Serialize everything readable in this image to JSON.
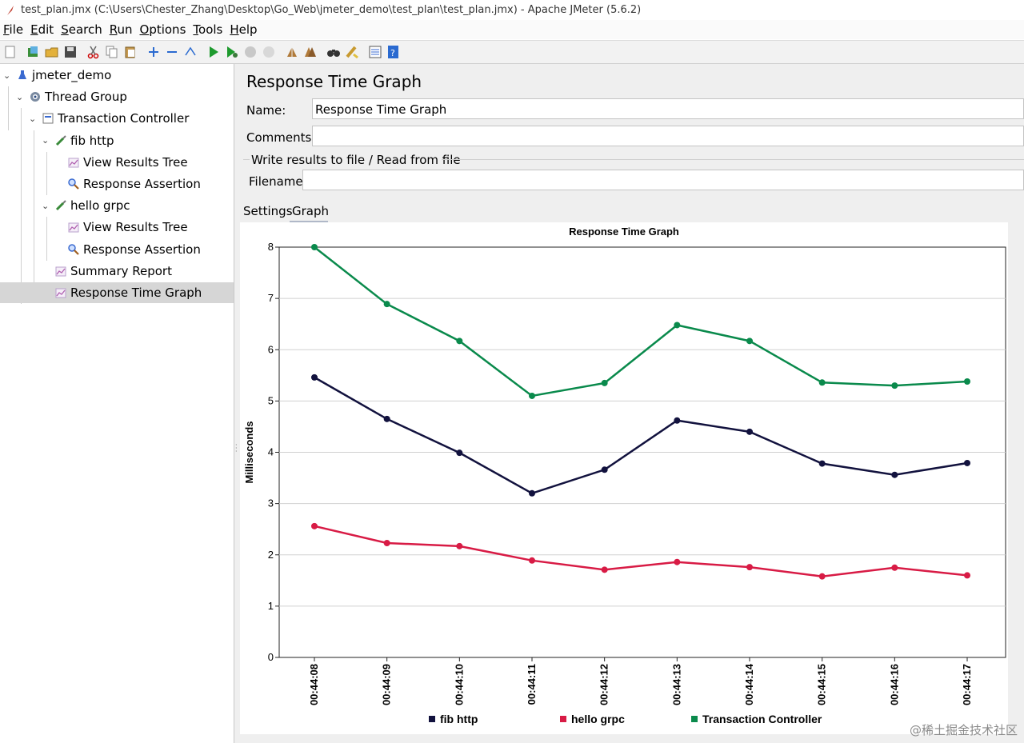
{
  "window": {
    "title": "test_plan.jmx (C:\\Users\\Chester_Zhang\\Desktop\\Go_Web\\jmeter_demo\\test_plan\\test_plan.jmx) - Apache JMeter (5.6.2)"
  },
  "menu": [
    {
      "first": "F",
      "rest": "ile"
    },
    {
      "first": "E",
      "rest": "dit"
    },
    {
      "first": "S",
      "rest": "earch"
    },
    {
      "first": "R",
      "rest": "un"
    },
    {
      "first": "O",
      "rest": "ptions"
    },
    {
      "first": "T",
      "rest": "ools"
    },
    {
      "first": "H",
      "rest": "elp"
    }
  ],
  "toolbar": {
    "icons": [
      "new-icon",
      "templates-icon",
      "open-icon",
      "save-icon",
      "cut-icon",
      "copy-icon",
      "paste-icon",
      "expand-icon",
      "collapse-icon",
      "toggle-icon",
      "start-icon",
      "start-no-pause-icon",
      "stop-icon",
      "shutdown-icon",
      "clear-icon",
      "clear-all-icon",
      "search-icon",
      "reset-search-icon",
      "function-helper-icon",
      "help-icon"
    ]
  },
  "tree": {
    "items": [
      {
        "label": "jmeter_demo",
        "icon": "flask-icon",
        "level": 0,
        "expanded": true
      },
      {
        "label": "Thread Group",
        "icon": "gear-icon",
        "level": 1,
        "expanded": true
      },
      {
        "label": "Transaction Controller",
        "icon": "controller-icon",
        "level": 2,
        "expanded": true
      },
      {
        "label": "fib http",
        "icon": "pipette-icon",
        "level": 3,
        "expanded": true
      },
      {
        "label": "View Results Tree",
        "icon": "listener-icon",
        "level": 4
      },
      {
        "label": "Response Assertion",
        "icon": "magnifier-icon",
        "level": 4
      },
      {
        "label": "hello grpc",
        "icon": "pipette-icon",
        "level": 3,
        "expanded": true
      },
      {
        "label": "View Results Tree",
        "icon": "listener-icon",
        "level": 4
      },
      {
        "label": "Response Assertion",
        "icon": "magnifier-icon",
        "level": 4
      },
      {
        "label": "Summary Report",
        "icon": "listener-icon",
        "level": 3
      },
      {
        "label": "Response Time Graph",
        "icon": "listener-icon",
        "level": 3,
        "selected": true
      }
    ]
  },
  "panel": {
    "title": "Response Time Graph",
    "name_label": "Name:",
    "name_value": "Response Time Graph",
    "comments_label": "Comments:",
    "comments_value": "",
    "file_group_label": "Write results to file / Read from file",
    "filename_label": "Filename",
    "filename_value": "",
    "tabs": [
      {
        "label": "Settings",
        "active": false
      },
      {
        "label": "Graph",
        "active": true
      }
    ]
  },
  "chart_data": {
    "type": "line",
    "title": "Response Time Graph",
    "xlabel": "",
    "ylabel": "Milliseconds",
    "categories": [
      "00:44:08",
      "00:44:09",
      "00:44:10",
      "00:44:11",
      "00:44:12",
      "00:44:13",
      "00:44:14",
      "00:44:15",
      "00:44:16",
      "00:44:17"
    ],
    "ylim": [
      0,
      8
    ],
    "yticks": [
      0,
      1,
      2,
      3,
      4,
      5,
      6,
      7,
      8
    ],
    "grid": true,
    "legend_position": "bottom",
    "series": [
      {
        "name": "fib http",
        "color": "#12123e",
        "values": [
          5.46,
          4.65,
          3.99,
          3.2,
          3.66,
          4.62,
          4.4,
          3.78,
          3.56,
          3.79
        ]
      },
      {
        "name": "hello grpc",
        "color": "#d81b45",
        "values": [
          2.56,
          2.23,
          2.17,
          1.89,
          1.71,
          1.86,
          1.76,
          1.58,
          1.75,
          1.6
        ]
      },
      {
        "name": "Transaction Controller",
        "color": "#0a8a4c",
        "values": [
          8.0,
          6.89,
          6.17,
          5.1,
          5.35,
          6.48,
          6.17,
          5.36,
          5.3,
          5.38
        ]
      }
    ]
  },
  "watermark": "@稀土掘金技术社区"
}
